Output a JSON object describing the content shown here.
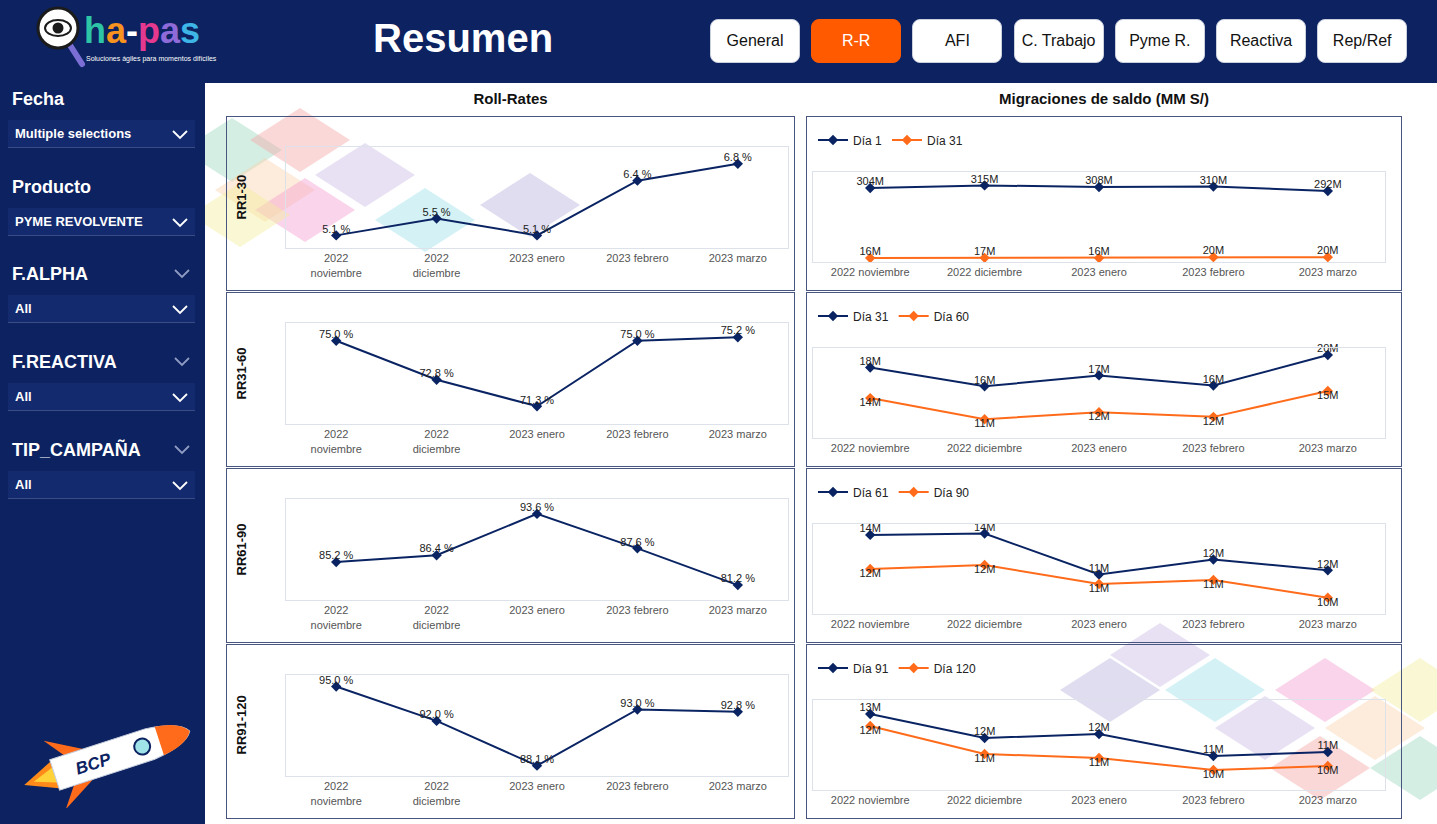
{
  "header": {
    "logo": "ha-pas",
    "tagline": "Soluciones ágiles para momentos difíciles",
    "title": "Resumen",
    "tabs": [
      "General",
      "R-R",
      "AFI",
      "C. Trabajo",
      "Pyme R.",
      "Reactiva",
      "Rep/Ref"
    ],
    "active_tab": "R-R"
  },
  "sidebar": {
    "filters": [
      {
        "label": "Fecha",
        "value": "Multiple selections",
        "expandable": false
      },
      {
        "label": "Producto",
        "value": "PYME REVOLVENTE",
        "expandable": false
      },
      {
        "label": "F.ALPHA",
        "value": "All",
        "expandable": true
      },
      {
        "label": "F.REACTIVA",
        "value": "All",
        "expandable": true
      },
      {
        "label": "TIP_CAMPAÑA",
        "value": "All",
        "expandable": true
      }
    ],
    "brand": "BCP"
  },
  "panels": {
    "left_title": "Roll-Rates",
    "right_title": "Migraciones de saldo (MM S/)"
  },
  "chart_data": [
    {
      "type": "line",
      "ylabel": "RR1-30",
      "categories": [
        "2022 noviembre",
        "2022 diciembre",
        "2023 enero",
        "2023 febrero",
        "2023 marzo"
      ],
      "values": [
        5.1,
        5.5,
        5.1,
        6.4,
        6.8
      ],
      "value_labels": [
        "5.1 %",
        "5.5 %",
        "5.1 %",
        "6.4 %",
        "6.8 %"
      ],
      "color": "#0a2463",
      "marker": "diamond",
      "ylim": [
        4.8,
        7.2
      ],
      "yticks": [],
      "tick_labels": "x",
      "grid": false,
      "data_labels": true
    },
    {
      "type": "line",
      "ylabel": "RR31-60",
      "categories": [
        "2022 noviembre",
        "2022 diciembre",
        "2023 enero",
        "2023 febrero",
        "2023 marzo"
      ],
      "values": [
        75.0,
        72.8,
        71.3,
        75.0,
        75.2
      ],
      "value_labels": [
        "75.0 %",
        "72.8 %",
        "71.3 %",
        "75.0 %",
        "75.2 %"
      ],
      "color": "#0a2463",
      "marker": "diamond",
      "ylim": [
        70.3,
        76.0
      ],
      "yticks": [],
      "tick_labels": "x",
      "grid": false,
      "data_labels": true
    },
    {
      "type": "line",
      "ylabel": "RR61-90",
      "categories": [
        "2022 noviembre",
        "2022 diciembre",
        "2023 enero",
        "2023 febrero",
        "2023 marzo"
      ],
      "values": [
        85.2,
        86.4,
        93.6,
        87.6,
        81.2
      ],
      "value_labels": [
        "85.2 %",
        "86.4 %",
        "93.6 %",
        "87.6 %",
        "81.2 %"
      ],
      "color": "#0a2463",
      "marker": "diamond",
      "ylim": [
        78.6,
        96.2
      ],
      "yticks": [],
      "tick_labels": "x",
      "grid": false,
      "data_labels": true
    },
    {
      "type": "line",
      "ylabel": "RR91-120",
      "categories": [
        "2022 noviembre",
        "2022 diciembre",
        "2023 enero",
        "2023 febrero",
        "2023 marzo"
      ],
      "values": [
        95.0,
        92.0,
        88.1,
        93.0,
        92.8
      ],
      "value_labels": [
        "95.0 %",
        "92.0 %",
        "88.1 %",
        "93.0 %",
        "92.8 %"
      ],
      "color": "#0a2463",
      "marker": "diamond",
      "ylim": [
        87.2,
        96.0
      ],
      "yticks": [],
      "tick_labels": "x",
      "grid": false,
      "data_labels": true
    },
    {
      "type": "line",
      "categories": [
        "2022 noviembre",
        "2022 diciembre",
        "2023 enero",
        "2023 febrero",
        "2023 marzo"
      ],
      "series": [
        {
          "name": "Día 1",
          "color": "#0a2463",
          "values": [
            304,
            315,
            308,
            310,
            292
          ],
          "value_labels": [
            "304M",
            "315M",
            "308M",
            "310M",
            "292M"
          ]
        },
        {
          "name": "Día 31",
          "color": "#ff6b1a",
          "values": [
            16,
            17,
            16,
            20,
            20
          ],
          "value_labels": [
            "16M",
            "17M",
            "16M",
            "20M",
            "20M"
          ]
        }
      ],
      "marker": "diamond",
      "ylim": [
        0,
        370
      ],
      "yticks": [],
      "tick_labels": "x",
      "grid": false,
      "data_labels": true,
      "legend": "upper left"
    },
    {
      "type": "line",
      "categories": [
        "2022 noviembre",
        "2022 diciembre",
        "2023 enero",
        "2023 febrero",
        "2023 marzo"
      ],
      "series": [
        {
          "name": "Día 31",
          "color": "#0a2463",
          "values": [
            18.0,
            15.6,
            17.0,
            15.7,
            19.6
          ],
          "value_labels": [
            "18M",
            "16M",
            "17M",
            "16M",
            "20M"
          ]
        },
        {
          "name": "Día 60",
          "color": "#ff6b1a",
          "values": [
            14.1,
            11.4,
            12.3,
            11.7,
            15.0
          ],
          "value_labels": [
            "14M",
            "11M",
            "12M",
            "12M",
            "15M"
          ]
        }
      ],
      "marker": "diamond",
      "ylim": [
        9.0,
        20.5
      ],
      "yticks": [],
      "tick_labels": "x",
      "grid": false,
      "data_labels": true,
      "legend": "upper left"
    },
    {
      "type": "line",
      "categories": [
        "2022 noviembre",
        "2022 diciembre",
        "2023 enero",
        "2023 febrero",
        "2023 marzo"
      ],
      "series": [
        {
          "name": "Día 61",
          "color": "#0a2463",
          "values": [
            14.2,
            14.3,
            11.3,
            12.4,
            11.6
          ],
          "value_labels": [
            "14M",
            "14M",
            "11M",
            "12M",
            "12M"
          ]
        },
        {
          "name": "Día 90",
          "color": "#ff6b1a",
          "values": [
            11.7,
            12.0,
            10.6,
            10.9,
            9.6
          ],
          "value_labels": [
            "12M",
            "12M",
            "11M",
            "11M",
            "10M"
          ]
        }
      ],
      "marker": "diamond",
      "ylim": [
        8.4,
        15.0
      ],
      "yticks": [],
      "tick_labels": "x",
      "grid": false,
      "data_labels": true,
      "legend": "upper left"
    },
    {
      "type": "line",
      "categories": [
        "2022 noviembre",
        "2022 diciembre",
        "2023 enero",
        "2023 febrero",
        "2023 marzo"
      ],
      "series": [
        {
          "name": "Día 91",
          "color": "#0a2463",
          "values": [
            13.0,
            11.8,
            12.0,
            10.9,
            11.1
          ],
          "value_labels": [
            "13M",
            "12M",
            "12M",
            "11M",
            "11M"
          ]
        },
        {
          "name": "Día 120",
          "color": "#ff6b1a",
          "values": [
            12.4,
            11.0,
            10.8,
            10.2,
            10.4
          ],
          "value_labels": [
            "12M",
            "11M",
            "11M",
            "10M",
            "10M"
          ]
        }
      ],
      "marker": "diamond",
      "ylim": [
        9.2,
        13.7
      ],
      "yticks": [],
      "tick_labels": "x",
      "grid": false,
      "data_labels": true,
      "legend": "upper left"
    }
  ]
}
